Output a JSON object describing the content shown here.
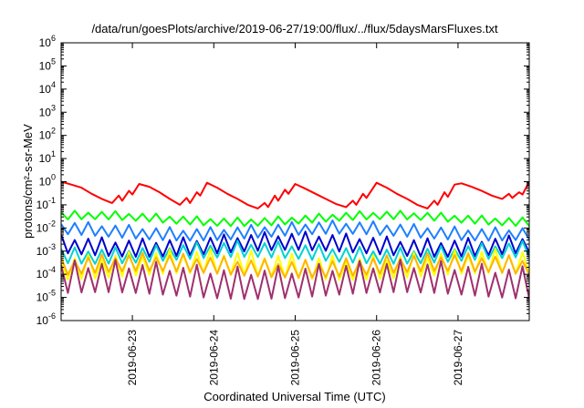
{
  "chart_data": {
    "type": "line",
    "title": "/data/run/goesPlots/archive/2019-06-27/19:00/flux/../flux/5daysMarsFluxes.txt",
    "xlabel": "Coordinated Universal Time (UTC)",
    "ylabel": "protons/cm²-s-sr-MeV",
    "xscale": "time",
    "xlim": [
      "2019-06-22T03:00",
      "2019-06-27T21:00"
    ],
    "yscale": "log",
    "ylim": [
      1e-06,
      1000000.0
    ],
    "x_ticks": [
      "2019-06-23",
      "2019-06-24",
      "2019-06-25",
      "2019-06-26",
      "2019-06-27"
    ],
    "y_ticks": [
      {
        "base": "10",
        "exp": "-6",
        "value": 1e-06
      },
      {
        "base": "10",
        "exp": "-5",
        "value": 1e-05
      },
      {
        "base": "10",
        "exp": "-4",
        "value": 0.0001
      },
      {
        "base": "10",
        "exp": "-3",
        "value": 0.001
      },
      {
        "base": "10",
        "exp": "-2",
        "value": 0.01
      },
      {
        "base": "10",
        "exp": "-1",
        "value": 0.1
      },
      {
        "base": "10",
        "exp": "0",
        "value": 1
      },
      {
        "base": "10",
        "exp": "1",
        "value": 10
      },
      {
        "base": "10",
        "exp": "2",
        "value": 100
      },
      {
        "base": "10",
        "exp": "3",
        "value": 1000
      },
      {
        "base": "10",
        "exp": "4",
        "value": 10000
      },
      {
        "base": "10",
        "exp": "5",
        "value": 100000
      },
      {
        "base": "10",
        "exp": "6",
        "value": 1000000
      }
    ],
    "grid": false,
    "legend": "none",
    "series": [
      {
        "color": "#ff0000",
        "points": [
          [
            "2019-06-22T03:00",
            1.0
          ],
          [
            "2019-06-22T06:00",
            0.75
          ],
          [
            "2019-06-22T09:00",
            0.55
          ],
          [
            "2019-06-22T12:00",
            0.3
          ],
          [
            "2019-06-22T15:00",
            0.18
          ],
          [
            "2019-06-22T18:00",
            0.12
          ],
          [
            "2019-06-22T20:00",
            0.25
          ],
          [
            "2019-06-22T21:00",
            0.15
          ],
          [
            "2019-06-22T23:00",
            0.4
          ],
          [
            "2019-06-23T00:00",
            0.28
          ],
          [
            "2019-06-23T02:00",
            0.8
          ],
          [
            "2019-06-23T05:00",
            0.6
          ],
          [
            "2019-06-23T08:00",
            0.35
          ],
          [
            "2019-06-23T11:00",
            0.18
          ],
          [
            "2019-06-23T14:00",
            0.1
          ],
          [
            "2019-06-23T16:00",
            0.2
          ],
          [
            "2019-06-23T17:00",
            0.12
          ],
          [
            "2019-06-23T19:00",
            0.35
          ],
          [
            "2019-06-23T20:00",
            0.25
          ],
          [
            "2019-06-23T22:00",
            0.9
          ],
          [
            "2019-06-24T01:00",
            0.55
          ],
          [
            "2019-06-24T04:00",
            0.3
          ],
          [
            "2019-06-24T07:00",
            0.18
          ],
          [
            "2019-06-24T10:00",
            0.1
          ],
          [
            "2019-06-24T13:00",
            0.07
          ],
          [
            "2019-06-24T15:00",
            0.12
          ],
          [
            "2019-06-24T16:00",
            0.08
          ],
          [
            "2019-06-24T18:00",
            0.25
          ],
          [
            "2019-06-24T19:00",
            0.15
          ],
          [
            "2019-06-24T21:00",
            0.45
          ],
          [
            "2019-06-24T22:00",
            0.3
          ],
          [
            "2019-06-25T00:00",
            0.8
          ],
          [
            "2019-06-25T03:00",
            0.5
          ],
          [
            "2019-06-25T06:00",
            0.3
          ],
          [
            "2019-06-25T09:00",
            0.18
          ],
          [
            "2019-06-25T12:00",
            0.11
          ],
          [
            "2019-06-25T15:00",
            0.08
          ],
          [
            "2019-06-25T17:00",
            0.15
          ],
          [
            "2019-06-25T18:00",
            0.1
          ],
          [
            "2019-06-25T20:00",
            0.3
          ],
          [
            "2019-06-25T21:00",
            0.2
          ],
          [
            "2019-06-26T00:00",
            0.9
          ],
          [
            "2019-06-26T03:00",
            0.55
          ],
          [
            "2019-06-26T06:00",
            0.3
          ],
          [
            "2019-06-26T09:00",
            0.18
          ],
          [
            "2019-06-26T12:00",
            0.1
          ],
          [
            "2019-06-26T15:00",
            0.07
          ],
          [
            "2019-06-26T17:00",
            0.15
          ],
          [
            "2019-06-26T18:00",
            0.1
          ],
          [
            "2019-06-26T20:00",
            0.35
          ],
          [
            "2019-06-26T21:00",
            0.22
          ],
          [
            "2019-06-26T23:00",
            0.75
          ],
          [
            "2019-06-27T01:00",
            0.85
          ],
          [
            "2019-06-27T04:00",
            0.6
          ],
          [
            "2019-06-27T07:00",
            0.4
          ],
          [
            "2019-06-27T10:00",
            0.25
          ],
          [
            "2019-06-27T13:00",
            0.18
          ],
          [
            "2019-06-27T15:00",
            0.3
          ],
          [
            "2019-06-27T16:00",
            0.2
          ],
          [
            "2019-06-27T18:00",
            0.35
          ],
          [
            "2019-06-27T19:00",
            0.28
          ],
          [
            "2019-06-27T21:00",
            1.0
          ]
        ]
      },
      {
        "color": "#00ff00",
        "style": "sawtooth",
        "base": 0.017,
        "peak": 0.04
      },
      {
        "color": "#1e7fff",
        "style": "sawtooth",
        "base": 0.004,
        "peak": 0.015
      },
      {
        "color": "#0000cd",
        "style": "sawtooth",
        "base": 0.0008,
        "peak": 0.005
      },
      {
        "color": "#00d2d2",
        "style": "sawtooth",
        "base": 0.0004,
        "peak": 0.002
      },
      {
        "color": "#ffff00",
        "style": "sawtooth",
        "base": 8e-05,
        "peak": 0.0009
      },
      {
        "color": "#ffb400",
        "style": "sawtooth",
        "base": 0.0001,
        "peak": 0.0006
      },
      {
        "color": "#a0306e",
        "style": "sawtooth",
        "base": 1.2e-05,
        "peak": 0.0003
      }
    ]
  }
}
